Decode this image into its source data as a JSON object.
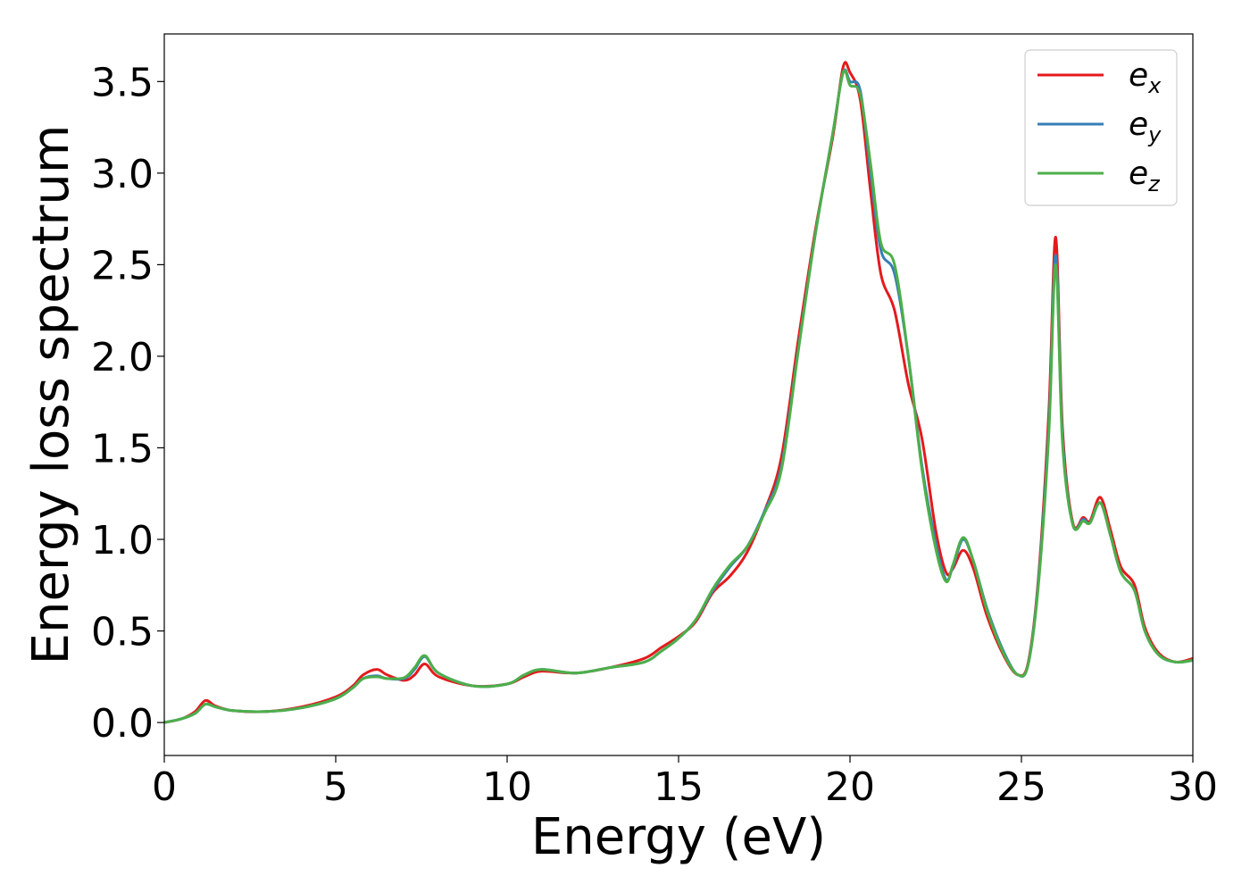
{
  "chart_data": {
    "type": "line",
    "xlabel": "Energy (eV)",
    "ylabel": "Energy loss spectrum",
    "xlim": [
      0,
      30
    ],
    "ylim": [
      -0.18,
      3.76
    ],
    "xticks": [
      0,
      5,
      10,
      15,
      20,
      25,
      30
    ],
    "xtick_labels": [
      "0",
      "5",
      "10",
      "15",
      "20",
      "25",
      "30"
    ],
    "yticks": [
      0.0,
      0.5,
      1.0,
      1.5,
      2.0,
      2.5,
      3.0,
      3.5
    ],
    "ytick_labels": [
      "0.0",
      "0.5",
      "1.0",
      "1.5",
      "2.0",
      "2.5",
      "3.0",
      "3.5"
    ],
    "grid": false,
    "legend_position": "top-right",
    "series": [
      {
        "name": "e_x",
        "legend_base": "e",
        "legend_sub": "x",
        "color": "#e41a1c",
        "points": [
          [
            0,
            0.0
          ],
          [
            0.5,
            0.02
          ],
          [
            0.9,
            0.06
          ],
          [
            1.2,
            0.12
          ],
          [
            1.5,
            0.09
          ],
          [
            2,
            0.065
          ],
          [
            3,
            0.06
          ],
          [
            4,
            0.085
          ],
          [
            5,
            0.14
          ],
          [
            5.5,
            0.2
          ],
          [
            5.8,
            0.26
          ],
          [
            6.2,
            0.29
          ],
          [
            6.5,
            0.26
          ],
          [
            7.0,
            0.23
          ],
          [
            7.3,
            0.26
          ],
          [
            7.6,
            0.32
          ],
          [
            8.0,
            0.25
          ],
          [
            9.0,
            0.2
          ],
          [
            10,
            0.21
          ],
          [
            10.5,
            0.25
          ],
          [
            11.0,
            0.28
          ],
          [
            12,
            0.27
          ],
          [
            13,
            0.3
          ],
          [
            14,
            0.35
          ],
          [
            14.5,
            0.41
          ],
          [
            15,
            0.47
          ],
          [
            15.5,
            0.55
          ],
          [
            16,
            0.71
          ],
          [
            16.5,
            0.8
          ],
          [
            17,
            0.93
          ],
          [
            17.5,
            1.15
          ],
          [
            18,
            1.45
          ],
          [
            18.5,
            2.1
          ],
          [
            19,
            2.7
          ],
          [
            19.5,
            3.2
          ],
          [
            19.8,
            3.58
          ],
          [
            20.0,
            3.55
          ],
          [
            20.3,
            3.4
          ],
          [
            20.6,
            2.9
          ],
          [
            20.9,
            2.45
          ],
          [
            21.3,
            2.25
          ],
          [
            21.7,
            1.85
          ],
          [
            22.1,
            1.55
          ],
          [
            22.5,
            1.05
          ],
          [
            22.8,
            0.82
          ],
          [
            23.0,
            0.84
          ],
          [
            23.3,
            0.94
          ],
          [
            23.6,
            0.84
          ],
          [
            24.0,
            0.58
          ],
          [
            24.5,
            0.36
          ],
          [
            24.9,
            0.26
          ],
          [
            25.2,
            0.33
          ],
          [
            25.5,
            0.8
          ],
          [
            25.8,
            1.7
          ],
          [
            26.0,
            2.65
          ],
          [
            26.2,
            1.6
          ],
          [
            26.5,
            1.09
          ],
          [
            26.8,
            1.12
          ],
          [
            27.0,
            1.1
          ],
          [
            27.3,
            1.23
          ],
          [
            27.6,
            1.05
          ],
          [
            27.9,
            0.85
          ],
          [
            28.3,
            0.75
          ],
          [
            28.6,
            0.52
          ],
          [
            29.0,
            0.38
          ],
          [
            29.5,
            0.33
          ],
          [
            30,
            0.35
          ]
        ]
      },
      {
        "name": "e_y",
        "legend_base": "e",
        "legend_sub": "y",
        "color": "#377eb8",
        "points": [
          [
            0,
            0.0
          ],
          [
            0.5,
            0.02
          ],
          [
            0.9,
            0.05
          ],
          [
            1.2,
            0.1
          ],
          [
            1.5,
            0.085
          ],
          [
            2,
            0.065
          ],
          [
            3,
            0.06
          ],
          [
            4,
            0.08
          ],
          [
            5,
            0.13
          ],
          [
            5.5,
            0.19
          ],
          [
            5.8,
            0.24
          ],
          [
            6.2,
            0.255
          ],
          [
            6.5,
            0.24
          ],
          [
            7.0,
            0.24
          ],
          [
            7.3,
            0.29
          ],
          [
            7.6,
            0.36
          ],
          [
            8.0,
            0.27
          ],
          [
            9.0,
            0.2
          ],
          [
            10,
            0.21
          ],
          [
            10.5,
            0.26
          ],
          [
            11.0,
            0.29
          ],
          [
            12,
            0.27
          ],
          [
            13,
            0.3
          ],
          [
            14,
            0.33
          ],
          [
            14.5,
            0.39
          ],
          [
            15,
            0.46
          ],
          [
            15.5,
            0.56
          ],
          [
            16,
            0.72
          ],
          [
            16.5,
            0.85
          ],
          [
            17,
            0.96
          ],
          [
            17.5,
            1.15
          ],
          [
            18,
            1.4
          ],
          [
            18.5,
            2.05
          ],
          [
            19,
            2.68
          ],
          [
            19.5,
            3.22
          ],
          [
            19.8,
            3.55
          ],
          [
            20.0,
            3.5
          ],
          [
            20.3,
            3.45
          ],
          [
            20.6,
            3.0
          ],
          [
            20.9,
            2.58
          ],
          [
            21.3,
            2.45
          ],
          [
            21.7,
            2.0
          ],
          [
            22.1,
            1.4
          ],
          [
            22.5,
            0.98
          ],
          [
            22.8,
            0.78
          ],
          [
            23.0,
            0.85
          ],
          [
            23.3,
            1.0
          ],
          [
            23.6,
            0.88
          ],
          [
            24.0,
            0.62
          ],
          [
            24.5,
            0.38
          ],
          [
            24.9,
            0.26
          ],
          [
            25.2,
            0.32
          ],
          [
            25.5,
            0.78
          ],
          [
            25.8,
            1.62
          ],
          [
            26.0,
            2.55
          ],
          [
            26.2,
            1.55
          ],
          [
            26.5,
            1.08
          ],
          [
            26.8,
            1.11
          ],
          [
            27.0,
            1.09
          ],
          [
            27.3,
            1.2
          ],
          [
            27.6,
            1.02
          ],
          [
            27.9,
            0.82
          ],
          [
            28.3,
            0.72
          ],
          [
            28.6,
            0.5
          ],
          [
            29.0,
            0.37
          ],
          [
            29.5,
            0.33
          ],
          [
            30,
            0.34
          ]
        ]
      },
      {
        "name": "e_z",
        "legend_base": "e",
        "legend_sub": "z",
        "color": "#4daf4a",
        "points": [
          [
            0,
            0.0
          ],
          [
            0.5,
            0.02
          ],
          [
            0.9,
            0.05
          ],
          [
            1.2,
            0.1
          ],
          [
            1.5,
            0.085
          ],
          [
            2,
            0.065
          ],
          [
            3,
            0.06
          ],
          [
            4,
            0.08
          ],
          [
            5,
            0.13
          ],
          [
            5.5,
            0.19
          ],
          [
            5.8,
            0.24
          ],
          [
            6.2,
            0.25
          ],
          [
            6.5,
            0.24
          ],
          [
            7.0,
            0.245
          ],
          [
            7.3,
            0.3
          ],
          [
            7.6,
            0.365
          ],
          [
            8.0,
            0.27
          ],
          [
            9.0,
            0.2
          ],
          [
            10,
            0.21
          ],
          [
            10.5,
            0.26
          ],
          [
            11.0,
            0.29
          ],
          [
            12,
            0.27
          ],
          [
            13,
            0.3
          ],
          [
            14,
            0.33
          ],
          [
            14.5,
            0.39
          ],
          [
            15,
            0.46
          ],
          [
            15.5,
            0.56
          ],
          [
            16,
            0.73
          ],
          [
            16.5,
            0.86
          ],
          [
            17,
            0.96
          ],
          [
            17.5,
            1.14
          ],
          [
            18,
            1.38
          ],
          [
            18.5,
            2.04
          ],
          [
            19,
            2.68
          ],
          [
            19.5,
            3.22
          ],
          [
            19.8,
            3.55
          ],
          [
            20.0,
            3.48
          ],
          [
            20.3,
            3.43
          ],
          [
            20.6,
            3.05
          ],
          [
            20.9,
            2.62
          ],
          [
            21.3,
            2.5
          ],
          [
            21.7,
            2.0
          ],
          [
            22.1,
            1.38
          ],
          [
            22.5,
            0.95
          ],
          [
            22.8,
            0.77
          ],
          [
            23.0,
            0.86
          ],
          [
            23.3,
            1.01
          ],
          [
            23.6,
            0.88
          ],
          [
            24.0,
            0.61
          ],
          [
            24.5,
            0.37
          ],
          [
            24.9,
            0.26
          ],
          [
            25.2,
            0.32
          ],
          [
            25.5,
            0.76
          ],
          [
            25.8,
            1.58
          ],
          [
            26.0,
            2.5
          ],
          [
            26.2,
            1.52
          ],
          [
            26.5,
            1.08
          ],
          [
            26.8,
            1.1
          ],
          [
            27.0,
            1.09
          ],
          [
            27.3,
            1.2
          ],
          [
            27.6,
            1.02
          ],
          [
            27.9,
            0.82
          ],
          [
            28.3,
            0.72
          ],
          [
            28.6,
            0.5
          ],
          [
            29.0,
            0.37
          ],
          [
            29.5,
            0.33
          ],
          [
            30,
            0.34
          ]
        ]
      }
    ]
  }
}
